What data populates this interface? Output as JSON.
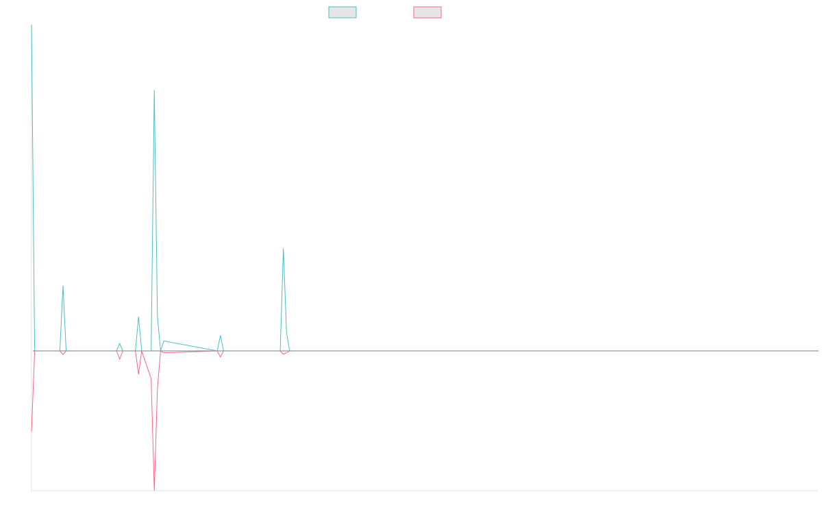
{
  "chart_data": {
    "type": "line",
    "title": "",
    "xlabel": "",
    "ylabel": "",
    "xlim": [
      0,
      250
    ],
    "ylim": [
      -45,
      105
    ],
    "baseline": 0,
    "grid": false,
    "legend_position": "top-center",
    "x": [
      0,
      1,
      9,
      10,
      11,
      27,
      28,
      29,
      33,
      34,
      35,
      38,
      39,
      40,
      41,
      42,
      59,
      60,
      61,
      79,
      80,
      81,
      82,
      250
    ],
    "series": [
      {
        "name": "",
        "color": "#4bc0c0",
        "fill": "#e6e6e6",
        "values": [
          105,
          0,
          0,
          21,
          0,
          0,
          2.4,
          0,
          0,
          11,
          0,
          0,
          84,
          11,
          0,
          3.2,
          0,
          5,
          0,
          0,
          33,
          6,
          0,
          0
        ]
      },
      {
        "name": "",
        "color": "#ff6384",
        "fill": "#e6e6e6",
        "values": [
          -26,
          0,
          0,
          -1.2,
          0,
          0,
          -2.6,
          0,
          0,
          -7.5,
          0,
          -9,
          -45,
          -12,
          0,
          -0.6,
          0,
          -2,
          0,
          0,
          -1.1,
          -0.6,
          0,
          0
        ]
      }
    ]
  }
}
